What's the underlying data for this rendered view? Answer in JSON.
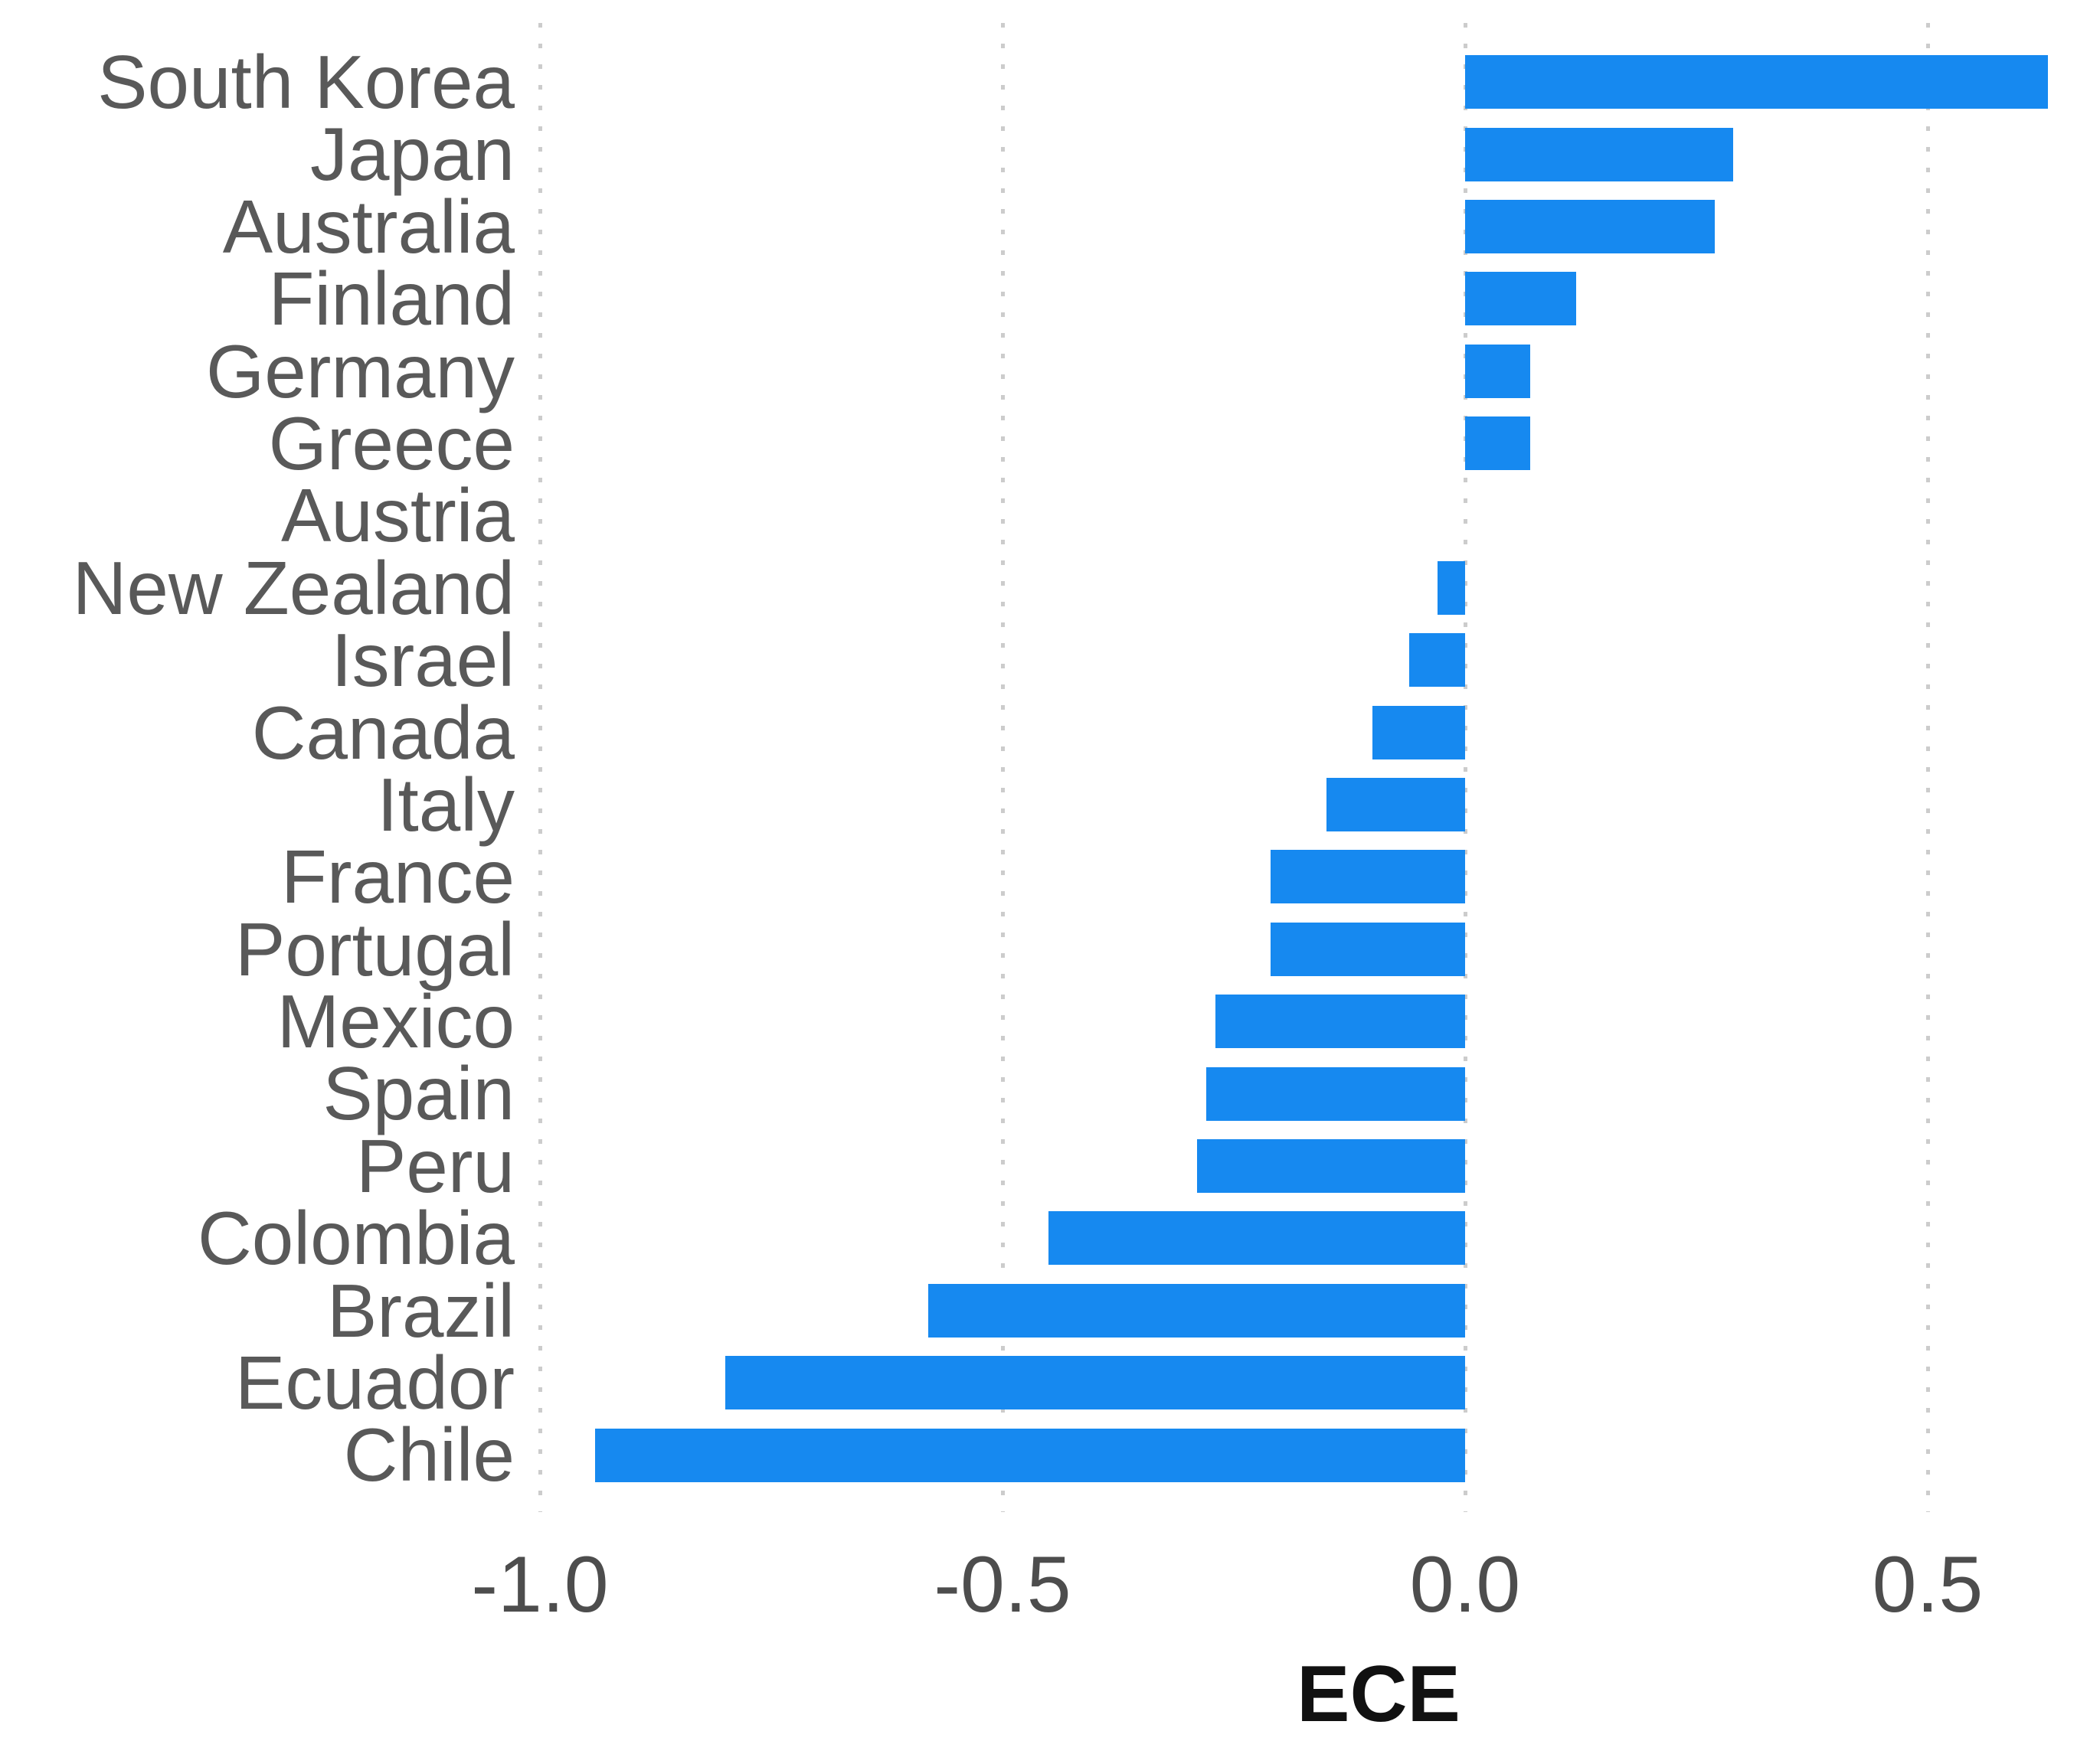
{
  "chart_data": {
    "type": "bar",
    "orientation": "horizontal",
    "xlabel": "ECE",
    "categories": [
      "South Korea",
      "Japan",
      "Australia",
      "Finland",
      "Germany",
      "Greece",
      "Austria",
      "New Zealand",
      "Israel",
      "Canada",
      "Italy",
      "France",
      "Portugal",
      "Mexico",
      "Spain",
      "Peru",
      "Colombia",
      "Brazil",
      "Ecuador",
      "Chile"
    ],
    "values": [
      0.63,
      0.29,
      0.27,
      0.12,
      0.07,
      0.07,
      0.0,
      -0.03,
      -0.06,
      -0.1,
      -0.15,
      -0.21,
      -0.21,
      -0.27,
      -0.28,
      -0.29,
      -0.45,
      -0.58,
      -0.8,
      -0.94
    ],
    "x_ticks": [
      -1.0,
      -0.5,
      0.0,
      0.5
    ],
    "x_tick_labels": [
      "-1.0",
      "-0.5",
      "0.0",
      "0.5"
    ],
    "xlim": [
      -1.0124,
      0.6863
    ],
    "grid": "dotted-vertical",
    "legend": "none",
    "bar_color": "#1689F0",
    "gridline_color": "#cccccc",
    "category_label_color": "#595959",
    "tick_label_color": "#4d4d4d",
    "xlabel_color": "#111111"
  }
}
